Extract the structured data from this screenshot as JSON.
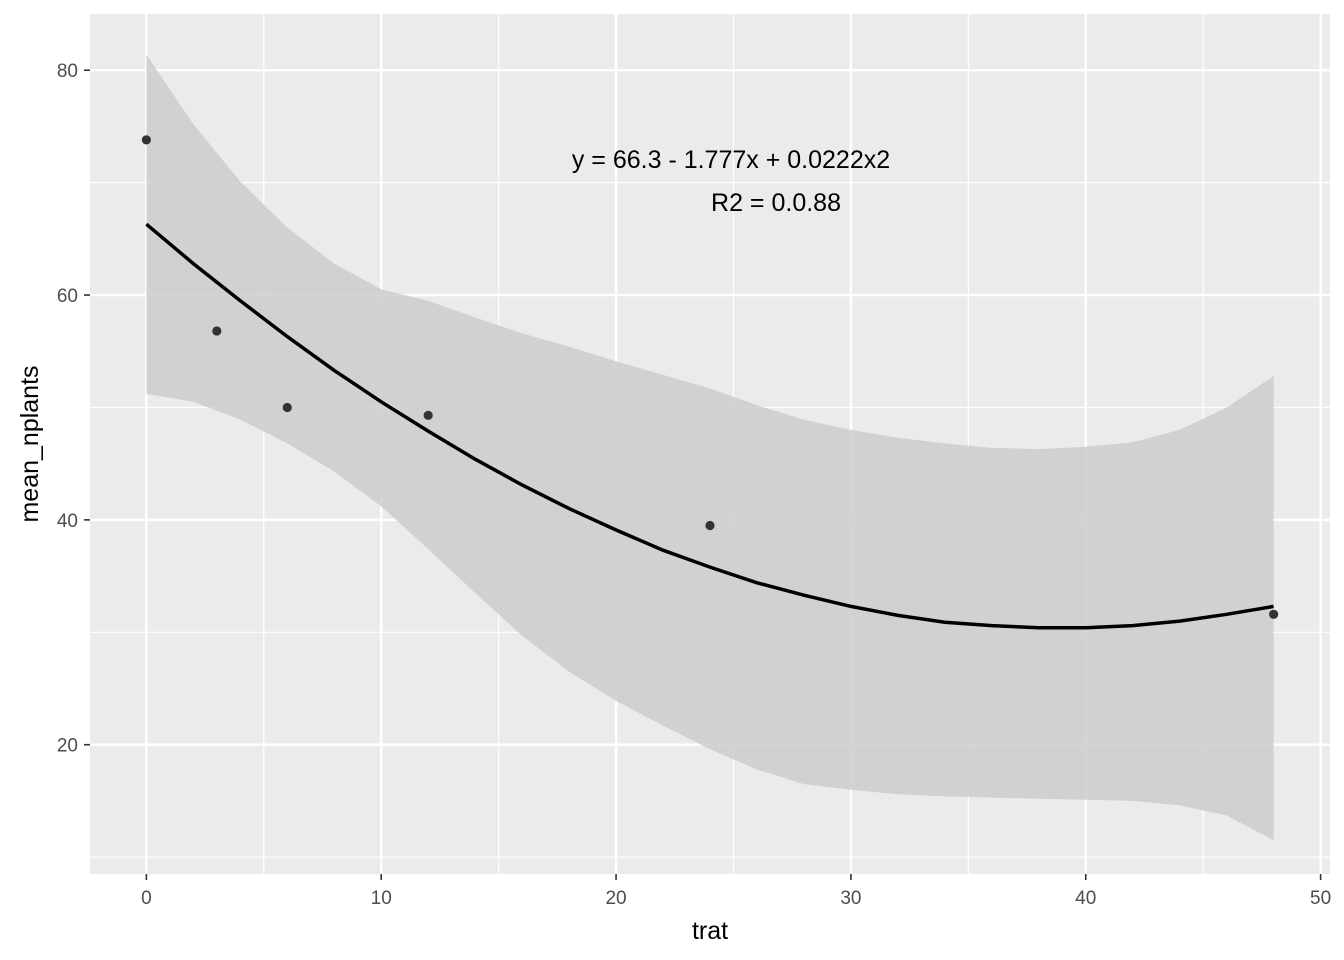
{
  "chart_data": {
    "type": "scatter",
    "xlabel": "trat",
    "ylabel": "mean_nplants",
    "xlim": [
      -2.4,
      50.4
    ],
    "ylim": [
      8.5,
      85
    ],
    "x_ticks": [
      0,
      10,
      20,
      30,
      40,
      50
    ],
    "x_tick_labels": [
      "0",
      "10",
      "20",
      "30",
      "40",
      "50"
    ],
    "y_ticks": [
      20,
      40,
      60,
      80
    ],
    "y_tick_labels": [
      "20",
      "40",
      "60",
      "80"
    ],
    "grid": true,
    "points": {
      "x": [
        0,
        3,
        6,
        12,
        24,
        48
      ],
      "y": [
        73.8,
        56.8,
        50.0,
        49.3,
        39.5,
        31.6
      ]
    },
    "fit": {
      "x": [
        0,
        2,
        4,
        6,
        8,
        10,
        12,
        14,
        16,
        18,
        20,
        22,
        24,
        26,
        28,
        30,
        32,
        34,
        36,
        38,
        40,
        42,
        44,
        46,
        48
      ],
      "y": [
        66.3,
        62.8,
        59.5,
        56.3,
        53.3,
        50.5,
        47.9,
        45.4,
        43.1,
        41.0,
        39.1,
        37.3,
        35.8,
        34.4,
        33.3,
        32.3,
        31.5,
        30.9,
        30.6,
        30.4,
        30.4,
        30.6,
        31.0,
        31.6,
        32.3
      ],
      "lower": [
        51.2,
        50.5,
        48.9,
        46.8,
        44.3,
        41.2,
        37.4,
        33.5,
        29.7,
        26.5,
        23.9,
        21.7,
        19.6,
        17.8,
        16.5,
        16.0,
        15.6,
        15.4,
        15.3,
        15.2,
        15.1,
        15.0,
        14.6,
        13.7,
        11.5
      ],
      "upper": [
        81.4,
        75.2,
        70.1,
        66.0,
        62.8,
        60.5,
        59.5,
        58.0,
        56.6,
        55.4,
        54.1,
        52.9,
        51.7,
        50.2,
        48.9,
        48.0,
        47.3,
        46.8,
        46.4,
        46.3,
        46.5,
        46.9,
        48.0,
        50.0,
        52.8
      ]
    },
    "annotations": [
      "y = 66.3 - 1.777x + 0.0222x2",
      "R2 = 0.0.88"
    ],
    "colors": {
      "panel_background": "#ebebeb",
      "grid_major": "#ffffff",
      "ribbon": "#cccccc",
      "line": "#000000",
      "point": "#333333"
    }
  }
}
